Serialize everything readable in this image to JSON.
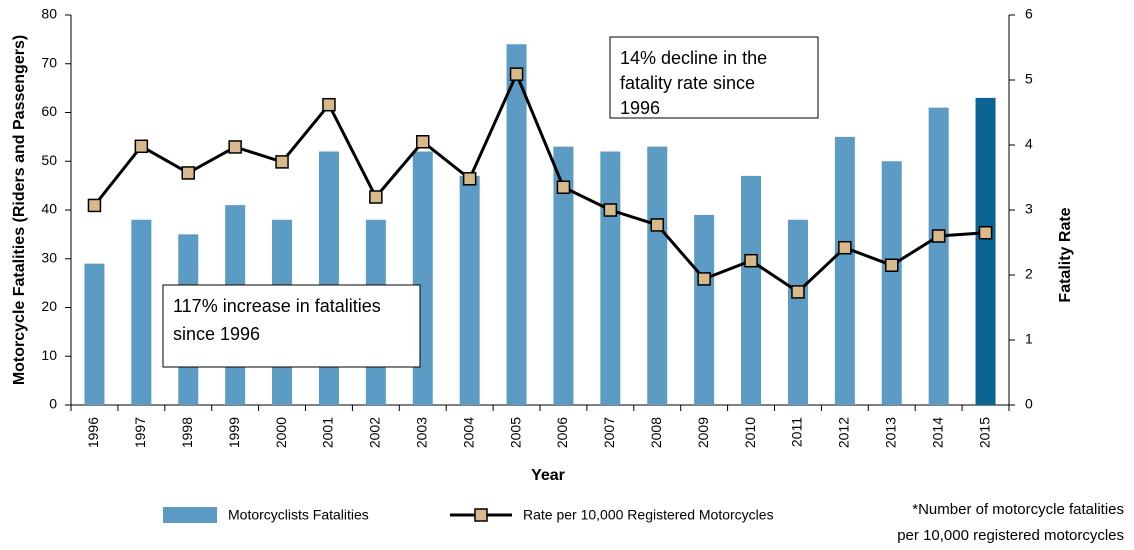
{
  "chart_data": {
    "type": "bar_line",
    "categories": [
      "1996",
      "1997",
      "1998",
      "1999",
      "2000",
      "2001",
      "2002",
      "2003",
      "2004",
      "2005",
      "2006",
      "2007",
      "2008",
      "2009",
      "2010",
      "2011",
      "2012",
      "2013",
      "2014",
      "2015"
    ],
    "series": [
      {
        "name": "Motorcyclists Fatalities",
        "type": "bar",
        "color": "#5b9bc4",
        "colors": [
          "#5b9bc4",
          "#5b9bc4",
          "#5b9bc4",
          "#5b9bc4",
          "#5b9bc4",
          "#5b9bc4",
          "#5b9bc4",
          "#5b9bc4",
          "#5b9bc4",
          "#5b9bc4",
          "#5b9bc4",
          "#5b9bc4",
          "#5b9bc4",
          "#5b9bc4",
          "#5b9bc4",
          "#5b9bc4",
          "#5b9bc4",
          "#5b9bc4",
          "#5b9bc4",
          "#0b6592"
        ],
        "values": [
          29,
          38,
          35,
          41,
          38,
          52,
          38,
          52,
          47,
          74,
          53,
          52,
          53,
          39,
          47,
          38,
          55,
          50,
          61,
          63
        ]
      },
      {
        "name": "Rate per 10,000 Registered Motorcycles",
        "type": "line",
        "axis": "y2",
        "color": "#000000",
        "marker_color": "#d8b98a",
        "values": [
          3.07,
          3.98,
          3.57,
          3.97,
          3.74,
          4.62,
          3.2,
          4.05,
          3.48,
          5.09,
          3.35,
          3.0,
          2.77,
          1.94,
          2.22,
          1.74,
          2.42,
          2.15,
          2.6,
          2.65
        ]
      }
    ],
    "xlabel": "Year",
    "ylabel": "Motorcycle Fatalities (Riders and Passengers)",
    "y2label": "Fatality Rate",
    "ylim": [
      0,
      80
    ],
    "yticks": [
      0,
      10,
      20,
      30,
      40,
      50,
      60,
      70,
      80
    ],
    "y2lim": [
      0,
      6
    ],
    "y2ticks": [
      0,
      1,
      2,
      3,
      4,
      5,
      6
    ],
    "annotations": [
      {
        "lines": [
          "117% increase in fatalities",
          "since 1996"
        ]
      },
      {
        "lines": [
          "14% decline in the",
          "fatality rate since",
          "1996"
        ]
      }
    ],
    "footnote": [
      "*Number of motorcycle fatalities",
      "per 10,000 registered motorcycles"
    ]
  }
}
